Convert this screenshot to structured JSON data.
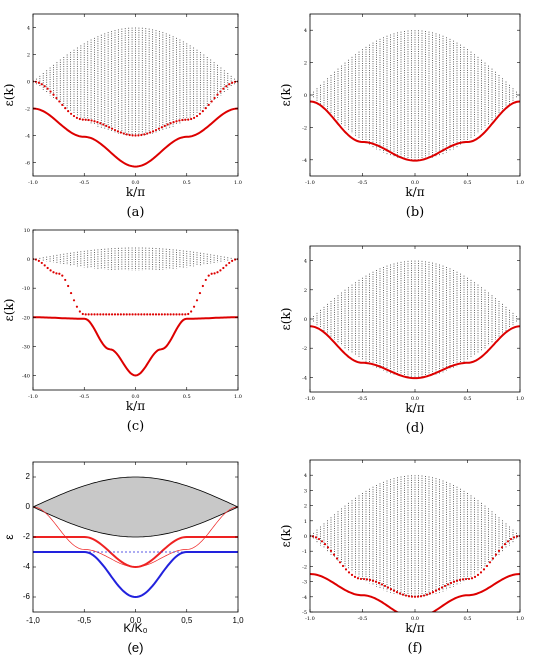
{
  "chart_data": [
    {
      "panel": "(a)",
      "type": "line",
      "xlabel": "k/π",
      "ylabel": "ε(k)",
      "xlim": [
        -1,
        1
      ],
      "ylim": [
        -7,
        5
      ],
      "xticks": [
        -1,
        -0.5,
        0,
        0.5,
        1
      ],
      "xtick_labels": [
        "-1.0",
        "-0.5",
        "0.0",
        "0.5",
        "1.0"
      ],
      "yticks": [
        -6,
        -4,
        -2,
        0,
        2,
        4
      ],
      "ytick_labels": [
        "-6",
        "-4",
        "-2",
        "0",
        "2",
        "4"
      ],
      "band": {
        "upper": [
          0,
          4,
          0
        ],
        "lower": [
          0,
          -4,
          0
        ],
        "n_lines": 60,
        "color": "#555555"
      },
      "series": [
        {
          "style": "dots",
          "color": "#dd0000",
          "x": [
            -1,
            -0.5,
            0,
            0.5,
            1
          ],
          "y": [
            0,
            -2.83,
            -4,
            -2.83,
            0
          ]
        },
        {
          "style": "line",
          "color": "#dd0000",
          "x": [
            -1,
            -0.5,
            0,
            0.5,
            1
          ],
          "y": [
            -2,
            -4.1,
            -6.3,
            -4.1,
            -2
          ]
        }
      ]
    },
    {
      "panel": "(b)",
      "type": "line",
      "xlabel": "k/π",
      "ylabel": "ε(k)",
      "xlim": [
        -1,
        1
      ],
      "ylim": [
        -5,
        5
      ],
      "xticks": [
        -1,
        -0.5,
        0,
        0.5,
        1
      ],
      "xtick_labels": [
        "-1.0",
        "-0.5",
        "0.0",
        "0.5",
        "1.0"
      ],
      "yticks": [
        -4,
        -2,
        0,
        2,
        4
      ],
      "ytick_labels": [
        "-4",
        "-2",
        "0",
        "2",
        "4"
      ],
      "band": {
        "upper": [
          0,
          4,
          0
        ],
        "lower": [
          0,
          -4,
          0
        ],
        "n_lines": 60,
        "color": "#555555"
      },
      "series": [
        {
          "style": "line",
          "color": "#dd0000",
          "x": [
            -1,
            -0.5,
            0,
            0.5,
            1
          ],
          "y": [
            -0.4,
            -2.9,
            -4.05,
            -2.9,
            -0.4
          ]
        }
      ]
    },
    {
      "panel": "(c)",
      "type": "line",
      "xlabel": "k/π",
      "ylabel": "ε(k)",
      "xlim": [
        -1,
        1
      ],
      "ylim": [
        -45,
        10
      ],
      "xticks": [
        -1,
        -0.5,
        0,
        0.5,
        1
      ],
      "xtick_labels": [
        "-1.0",
        "-0.5",
        "0.0",
        "0.5",
        "1.0"
      ],
      "yticks": [
        -40,
        -30,
        -20,
        -10,
        0,
        10
      ],
      "ytick_labels": [
        "-40",
        "-30",
        "-20",
        "-10",
        "0",
        "10"
      ],
      "band": {
        "upper": [
          0,
          4,
          0
        ],
        "lower": [
          0,
          -4,
          0
        ],
        "n_lines": 60,
        "color": "#555555"
      },
      "series": [
        {
          "style": "dots",
          "color": "#dd0000",
          "x": [
            -1,
            -0.75,
            -0.5,
            0,
            0.5,
            0.75,
            1
          ],
          "y": [
            0,
            -5,
            -19,
            -19,
            -19,
            -5,
            0
          ]
        },
        {
          "style": "line",
          "color": "#dd0000",
          "x": [
            -1,
            -0.5,
            -0.25,
            0,
            0.25,
            0.5,
            1
          ],
          "y": [
            -20,
            -20.5,
            -31,
            -40,
            -31,
            -20.5,
            -20
          ]
        }
      ]
    },
    {
      "panel": "(d)",
      "type": "line",
      "xlabel": "k/π",
      "ylabel": "ε(k)",
      "xlim": [
        -1,
        1
      ],
      "ylim": [
        -5,
        5
      ],
      "xticks": [
        -1,
        -0.5,
        0,
        0.5,
        1
      ],
      "xtick_labels": [
        "-1.0",
        "-0.5",
        "0.0",
        "0.5",
        "1.0"
      ],
      "yticks": [
        -4,
        -2,
        0,
        2,
        4
      ],
      "ytick_labels": [
        "-4",
        "-2",
        "0",
        "2",
        "4"
      ],
      "band": {
        "upper": [
          0,
          4,
          0
        ],
        "lower": [
          0,
          -4,
          0
        ],
        "n_lines": 60,
        "color": "#555555"
      },
      "series": [
        {
          "style": "line",
          "color": "#dd0000",
          "x": [
            -1,
            -0.5,
            0,
            0.5,
            1
          ],
          "y": [
            -0.5,
            -3.0,
            -4.05,
            -3.0,
            -0.5
          ]
        }
      ]
    },
    {
      "panel": "(e)",
      "type": "line",
      "xlabel": "K/K₀",
      "ylabel": "ε",
      "xlim": [
        -1,
        1
      ],
      "ylim": [
        -7,
        3
      ],
      "xticks": [
        -1,
        -0.5,
        0,
        0.5,
        1
      ],
      "xtick_labels": [
        "-1,0",
        "-0,5",
        "0,0",
        "0,5",
        "1,0"
      ],
      "yticks": [
        -6,
        -4,
        -2,
        0,
        2
      ],
      "ytick_labels": [
        "-6",
        "-4",
        "-2",
        "0",
        "2"
      ],
      "band": {
        "upper": [
          0,
          2,
          0
        ],
        "lower": [
          0,
          -2,
          0
        ],
        "fill": "#c8c8c8",
        "color": "#000000"
      },
      "series": [
        {
          "style": "line",
          "color": "#ee2222",
          "x": [
            -1,
            -0.5,
            0,
            0.5,
            1
          ],
          "y": [
            -2,
            -2,
            -4,
            -2,
            -2
          ]
        },
        {
          "style": "line",
          "color": "#2222dd",
          "x": [
            -1,
            -0.5,
            0,
            0.5,
            1
          ],
          "y": [
            -3,
            -3,
            -6,
            -3,
            -3
          ]
        },
        {
          "style": "thin",
          "color": "#ee2222",
          "x": [
            -1,
            -0.5,
            0,
            0.5,
            1
          ],
          "y": [
            0,
            -2.83,
            -4,
            -2.83,
            0
          ]
        },
        {
          "style": "dashed",
          "color": "#2222dd",
          "x": [
            -1,
            1
          ],
          "y": [
            -3,
            -3
          ]
        }
      ]
    },
    {
      "panel": "(f)",
      "type": "line",
      "xlabel": "k/π",
      "ylabel": "ε(k)",
      "xlim": [
        -1,
        1
      ],
      "ylim": [
        -5,
        5
      ],
      "xticks": [
        -1,
        -0.5,
        0,
        0.5,
        1
      ],
      "xtick_labels": [
        "-1.0",
        "-0.5",
        "0.0",
        "0.5",
        "1.0"
      ],
      "yticks": [
        -5,
        -4,
        -3,
        -2,
        -1,
        0,
        1,
        2,
        3,
        4
      ],
      "ytick_labels": [
        "-5",
        "-4",
        "-3",
        "-2",
        "-1",
        "0",
        "1",
        "2",
        "3",
        "4"
      ],
      "band": {
        "upper": [
          0,
          4,
          0
        ],
        "lower": [
          0,
          -4,
          0
        ],
        "n_lines": 60,
        "color": "#555555"
      },
      "series": [
        {
          "style": "dots",
          "color": "#dd0000",
          "x": [
            -1,
            -0.5,
            0,
            0.5,
            1
          ],
          "y": [
            0,
            -2.83,
            -4,
            -2.83,
            0
          ]
        },
        {
          "style": "line",
          "color": "#dd0000",
          "x": [
            -1,
            -0.5,
            0,
            0.5,
            1
          ],
          "y": [
            -2.5,
            -3.9,
            -5.4,
            -3.9,
            -2.5
          ]
        }
      ]
    }
  ]
}
